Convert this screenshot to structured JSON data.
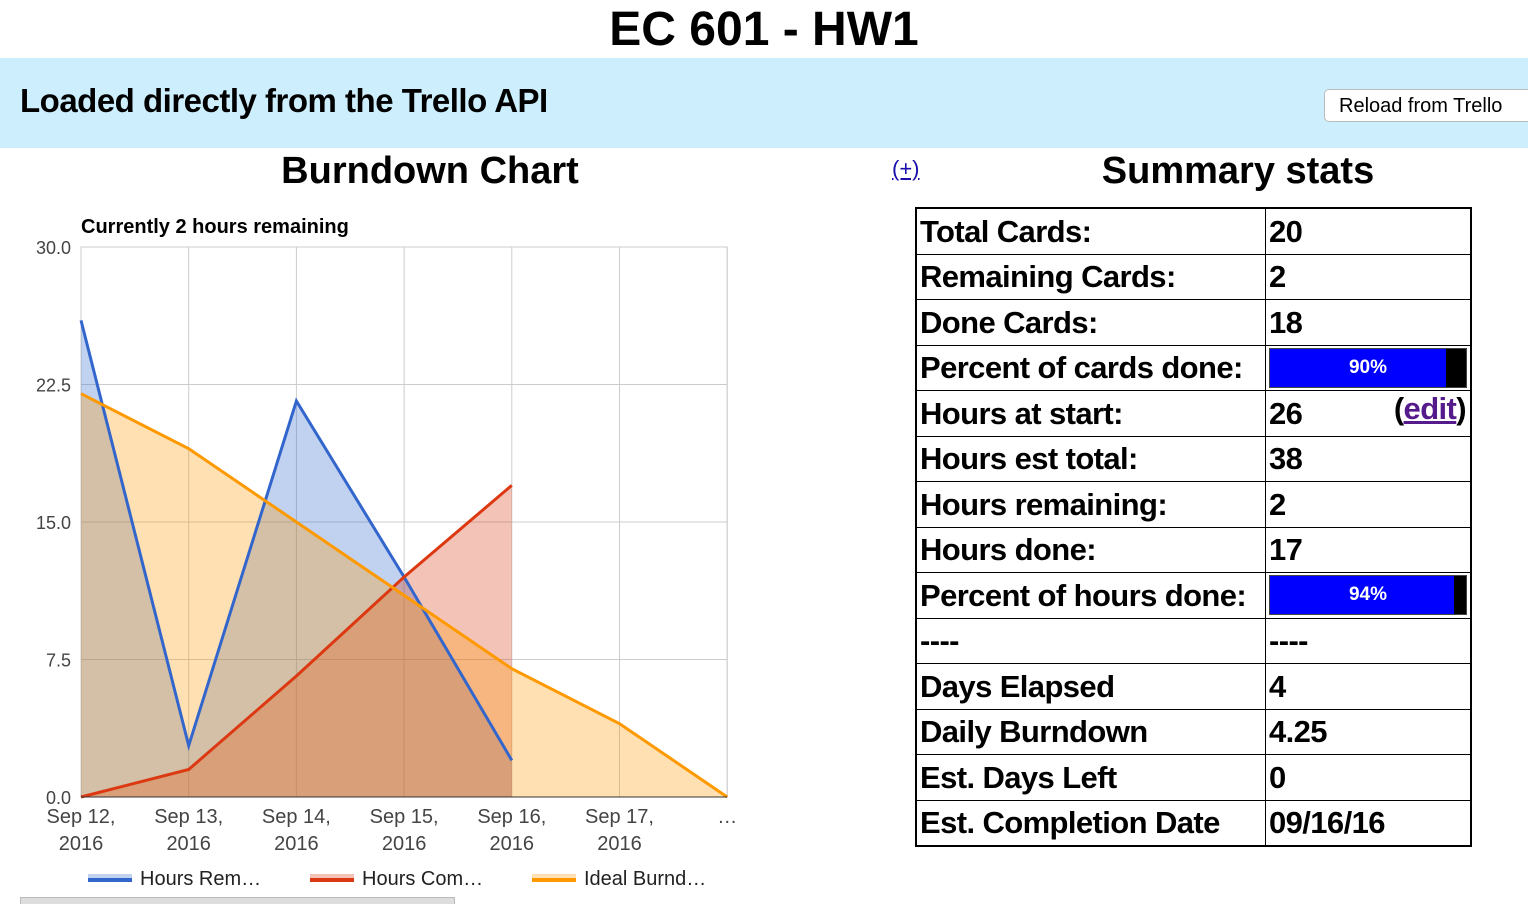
{
  "header": {
    "title": "EC 601 - HW1",
    "banner": "Loaded directly from the Trello API",
    "reload_button": "Reload from Trello"
  },
  "chart_data": {
    "type": "area",
    "title": "Burndown Chart",
    "subtitle": "Currently 2 hours remaining",
    "categories": [
      "Sep 12, 2016",
      "Sep 13, 2016",
      "Sep 14, 2016",
      "Sep 15, 2016",
      "Sep 16, 2016",
      "Sep 17, 2016",
      "…"
    ],
    "series": [
      {
        "name": "Hours Rem…",
        "color": "#3366cc",
        "values": [
          26,
          2.8,
          21.6,
          12,
          2,
          null,
          null
        ]
      },
      {
        "name": "Hours Com…",
        "color": "#dc3912",
        "values": [
          0,
          1.5,
          6.6,
          12,
          17,
          null,
          null
        ]
      },
      {
        "name": "Ideal Burnd…",
        "color": "#ff9900",
        "values": [
          22,
          19,
          15,
          11,
          7,
          4,
          0
        ]
      }
    ],
    "ylim": [
      0,
      30
    ],
    "yticks": [
      {
        "value": 0,
        "label": "0.0"
      },
      {
        "value": 7.5,
        "label": "7.5"
      },
      {
        "value": 15,
        "label": "15.0"
      },
      {
        "value": 22.5,
        "label": "22.5"
      },
      {
        "value": 30,
        "label": "30.0"
      }
    ],
    "grid": true,
    "legend": "bottom"
  },
  "expand_link": "(+)",
  "stats": {
    "title": "Summary stats",
    "rows": [
      {
        "label": "Total Cards:",
        "value": "20"
      },
      {
        "label": "Remaining Cards:",
        "value": "2"
      },
      {
        "label": "Done Cards:",
        "value": "18"
      },
      {
        "label": "Percent of cards done:",
        "progress": 90,
        "progress_label": "90%"
      },
      {
        "label": "Hours at start:",
        "value": "26",
        "edit_before": "(",
        "edit": "edit",
        "edit_after": ")"
      },
      {
        "label": "Hours est total:",
        "value": "38"
      },
      {
        "label": "Hours remaining:",
        "value": "2"
      },
      {
        "label": "Hours done:",
        "value": "17"
      },
      {
        "label": "Percent of hours done:",
        "progress": 94,
        "progress_label": "94%"
      },
      {
        "label": "----",
        "value": "----"
      },
      {
        "label": "Days Elapsed",
        "value": "4"
      },
      {
        "label": "Daily Burndown",
        "value": "4.25"
      },
      {
        "label": "Est. Days Left",
        "value": "0"
      },
      {
        "label": "Est. Completion Date",
        "value": "09/16/16"
      }
    ]
  }
}
